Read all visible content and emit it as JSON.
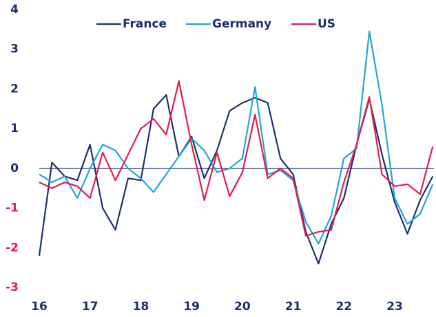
{
  "chart_data": {
    "type": "line",
    "x": [
      16,
      16.25,
      16.5,
      16.75,
      17,
      17.25,
      17.5,
      17.75,
      18,
      18.25,
      18.5,
      18.75,
      19,
      19.25,
      19.5,
      19.75,
      20,
      20.25,
      20.5,
      20.75,
      21,
      21.25,
      21.5,
      21.75,
      22,
      22.25,
      22.5,
      22.75,
      23,
      23.25,
      23.5,
      23.75
    ],
    "series": [
      {
        "name": "France",
        "color": "#1b2f6e",
        "values": [
          -2.2,
          0.15,
          -0.2,
          -0.3,
          0.6,
          -1.0,
          -1.55,
          -0.25,
          -0.3,
          1.5,
          1.85,
          0.3,
          0.8,
          -0.25,
          0.45,
          1.45,
          1.65,
          1.78,
          1.65,
          0.25,
          -0.15,
          -1.6,
          -2.4,
          -1.4,
          -0.75,
          0.6,
          1.75,
          0.35,
          -0.85,
          -1.65,
          -0.8,
          -0.2
        ]
      },
      {
        "name": "Germany",
        "color": "#1ea7d6",
        "values": [
          -0.15,
          -0.35,
          -0.2,
          -0.75,
          0.0,
          0.6,
          0.45,
          0.0,
          -0.25,
          -0.6,
          -0.15,
          0.3,
          0.75,
          0.45,
          -0.1,
          0.0,
          0.25,
          2.05,
          -0.15,
          -0.05,
          -0.3,
          -1.35,
          -1.9,
          -1.2,
          0.25,
          0.5,
          3.45,
          1.6,
          -0.75,
          -1.4,
          -1.15,
          -0.4
        ]
      },
      {
        "name": "US",
        "color": "#e8194b",
        "values": [
          -0.35,
          -0.5,
          -0.35,
          -0.45,
          -0.75,
          0.4,
          -0.3,
          0.35,
          1.0,
          1.25,
          0.85,
          2.2,
          0.6,
          -0.8,
          0.4,
          -0.7,
          -0.1,
          1.35,
          -0.25,
          0.0,
          -0.25,
          -1.7,
          -1.6,
          -1.55,
          -0.35,
          0.6,
          1.8,
          -0.15,
          -0.45,
          -0.4,
          -0.65,
          0.55
        ]
      }
    ],
    "xlim": [
      16,
      23.8
    ],
    "xticks": [
      16,
      17,
      18,
      19,
      20,
      21,
      22,
      23
    ],
    "ylim": [
      -3,
      4
    ],
    "yticks": [
      -3,
      -2,
      -1,
      0,
      1,
      2,
      3,
      4
    ],
    "tick_color": "#1b2f6e",
    "negative_tick_color": "#e8194b",
    "zero_line": true,
    "legend": "top"
  }
}
